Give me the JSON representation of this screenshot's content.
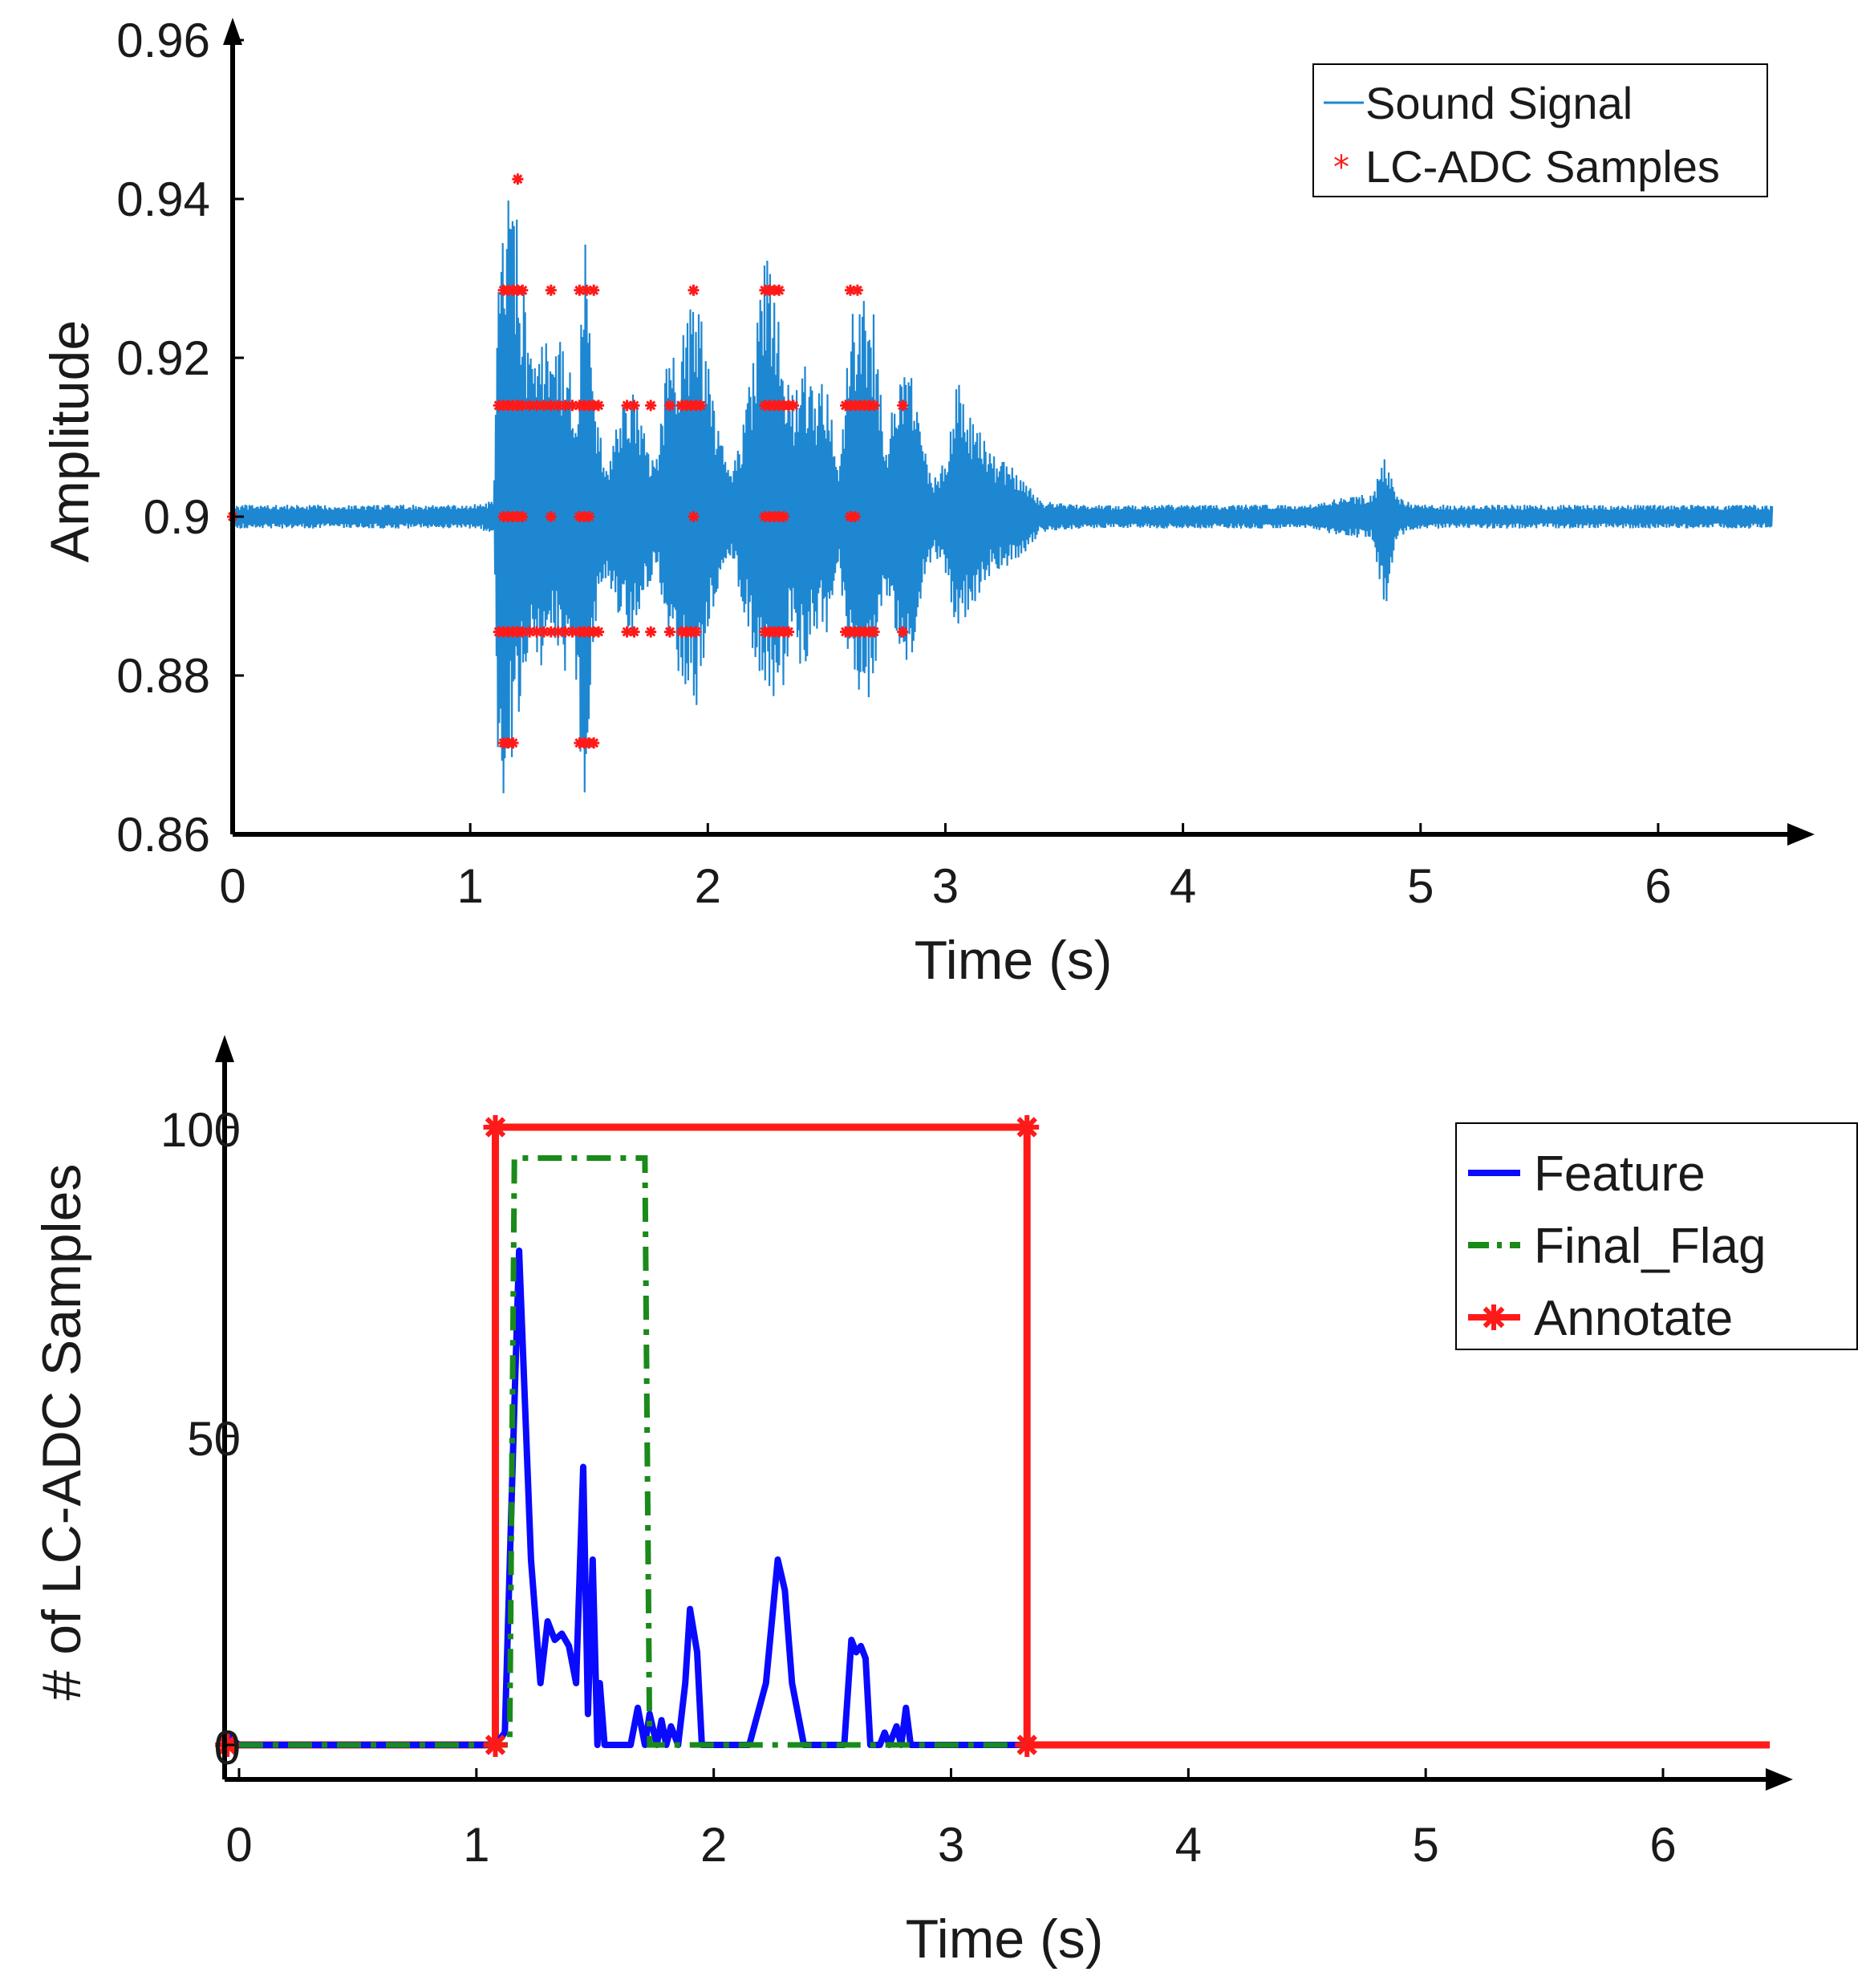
{
  "colors": {
    "signal": "#1e87d2",
    "samples": "#ff1a1a",
    "feature": "#0a0aff",
    "final_flag": "#1a8a1a",
    "annotate": "#ff1a1a",
    "axis": "#000000"
  },
  "chart_data": [
    {
      "type": "line",
      "id": "top",
      "xlabel": "Time (s)",
      "ylabel": "Amplitude",
      "xlim": [
        0,
        6.5
      ],
      "ylim": [
        0.86,
        0.96
      ],
      "xticks": [
        0,
        1,
        2,
        3,
        4,
        5,
        6
      ],
      "xtick_labels": [
        "0",
        "1",
        "2",
        "3",
        "4",
        "5",
        "6"
      ],
      "yticks": [
        0.86,
        0.88,
        0.9,
        0.92,
        0.94,
        0.96
      ],
      "ytick_labels": [
        "0.86",
        "0.88",
        "0.9",
        "0.92",
        "0.94",
        "0.96"
      ],
      "legend": {
        "position": "top-right",
        "entries": [
          {
            "label": "Sound Signal",
            "style": "line"
          },
          {
            "label": "LC-ADC Samples",
            "style": "marker"
          }
        ]
      },
      "series": [
        {
          "name": "Sound Signal",
          "kind": "envelope",
          "baseline": 0.9,
          "t": [
            0,
            1.0,
            1.1,
            1.12,
            1.18,
            1.22,
            1.26,
            1.3,
            1.35,
            1.4,
            1.45,
            1.48,
            1.52,
            1.58,
            1.62,
            1.68,
            1.72,
            1.78,
            1.82,
            1.85,
            1.9,
            1.95,
            2.0,
            2.05,
            2.1,
            2.15,
            2.2,
            2.25,
            2.3,
            2.35,
            2.4,
            2.45,
            2.5,
            2.55,
            2.6,
            2.65,
            2.7,
            2.75,
            2.8,
            2.85,
            2.9,
            2.95,
            3.0,
            3.05,
            3.1,
            3.2,
            3.3,
            3.4,
            3.6,
            4.0,
            4.5,
            4.8,
            4.85,
            4.9,
            4.95,
            5.0,
            5.2,
            5.5,
            6.0,
            6.5
          ],
          "upper": [
            0.9015,
            0.9015,
            0.902,
            0.935,
            0.943,
            0.93,
            0.92,
            0.922,
            0.925,
            0.921,
            0.915,
            0.938,
            0.914,
            0.907,
            0.912,
            0.917,
            0.913,
            0.906,
            0.918,
            0.921,
            0.925,
            0.93,
            0.92,
            0.91,
            0.906,
            0.912,
            0.922,
            0.936,
            0.928,
            0.915,
            0.92,
            0.915,
            0.918,
            0.905,
            0.925,
            0.93,
            0.926,
            0.91,
            0.918,
            0.92,
            0.91,
            0.905,
            0.908,
            0.918,
            0.913,
            0.908,
            0.906,
            0.902,
            0.9015,
            0.9015,
            0.9015,
            0.903,
            0.908,
            0.903,
            0.902,
            0.9015,
            0.9015,
            0.9015,
            0.9015,
            0.9015
          ],
          "lower": [
            0.8985,
            0.8985,
            0.898,
            0.862,
            0.87,
            0.878,
            0.885,
            0.88,
            0.885,
            0.88,
            0.876,
            0.862,
            0.885,
            0.892,
            0.888,
            0.884,
            0.888,
            0.894,
            0.888,
            0.88,
            0.878,
            0.875,
            0.885,
            0.892,
            0.895,
            0.888,
            0.882,
            0.876,
            0.872,
            0.886,
            0.88,
            0.886,
            0.885,
            0.894,
            0.88,
            0.875,
            0.878,
            0.89,
            0.883,
            0.88,
            0.89,
            0.895,
            0.892,
            0.885,
            0.888,
            0.893,
            0.894,
            0.898,
            0.8985,
            0.8985,
            0.8985,
            0.897,
            0.887,
            0.897,
            0.898,
            0.8985,
            0.8985,
            0.8985,
            0.8985,
            0.8985
          ]
        },
        {
          "name": "LC-ADC Samples",
          "kind": "markers",
          "levels": [
            {
              "y": 0.9425,
              "t": [
                1.2
              ]
            },
            {
              "y": 0.9285,
              "t": [
                1.14,
                1.16,
                1.18,
                1.2,
                1.22,
                1.34,
                1.46,
                1.49,
                1.52,
                1.94,
                2.24,
                2.26,
                2.28,
                2.3,
                2.6,
                2.63
              ]
            },
            {
              "y": 0.914,
              "t": [
                1.12,
                1.14,
                1.16,
                1.18,
                1.2,
                1.22,
                1.25,
                1.28,
                1.31,
                1.34,
                1.37,
                1.4,
                1.43,
                1.46,
                1.48,
                1.5,
                1.52,
                1.54,
                1.66,
                1.69,
                1.76,
                1.84,
                1.89,
                1.91,
                1.93,
                1.95,
                1.97,
                2.24,
                2.26,
                2.28,
                2.3,
                2.32,
                2.34,
                2.36,
                2.58,
                2.6,
                2.62,
                2.64,
                2.66,
                2.68,
                2.7,
                2.82
              ]
            },
            {
              "y": 0.9,
              "t": [
                0.0,
                1.14,
                1.16,
                1.18,
                1.2,
                1.22,
                1.34,
                1.46,
                1.48,
                1.5,
                1.94,
                2.24,
                2.26,
                2.28,
                2.3,
                2.32,
                2.6,
                2.62
              ]
            },
            {
              "y": 0.8855,
              "t": [
                1.12,
                1.14,
                1.16,
                1.18,
                1.2,
                1.22,
                1.25,
                1.28,
                1.31,
                1.34,
                1.37,
                1.4,
                1.43,
                1.46,
                1.48,
                1.5,
                1.52,
                1.54,
                1.66,
                1.69,
                1.76,
                1.84,
                1.89,
                1.91,
                1.93,
                1.95,
                2.24,
                2.26,
                2.28,
                2.3,
                2.32,
                2.34,
                2.58,
                2.6,
                2.62,
                2.64,
                2.66,
                2.68,
                2.7,
                2.82
              ]
            },
            {
              "y": 0.8715,
              "t": [
                1.14,
                1.16,
                1.18,
                1.46,
                1.48,
                1.5,
                1.52
              ]
            }
          ]
        }
      ]
    },
    {
      "type": "line",
      "id": "bottom",
      "xlabel": "Time (s)",
      "ylabel": "# of LC-ADC Samples",
      "xlim": [
        0,
        6.5
      ],
      "ylim": [
        -3,
        110
      ],
      "xticks": [
        0,
        1,
        2,
        3,
        4,
        5,
        6
      ],
      "xtick_labels": [
        "0",
        "1",
        "2",
        "3",
        "4",
        "5",
        "6"
      ],
      "yticks": [
        0,
        50,
        100
      ],
      "ytick_labels": [
        "0",
        "50",
        "100"
      ],
      "legend": {
        "position": "top-right",
        "entries": [
          {
            "label": "Feature",
            "style": "solid"
          },
          {
            "label": "Final_Flag",
            "style": "dashdot"
          },
          {
            "label": "Annotate",
            "style": "solid-star"
          }
        ]
      },
      "series": [
        {
          "name": "Feature",
          "x": [
            -0.05,
            0.0,
            1.05,
            1.08,
            1.12,
            1.16,
            1.18,
            1.2,
            1.23,
            1.27,
            1.3,
            1.33,
            1.36,
            1.39,
            1.42,
            1.45,
            1.47,
            1.49,
            1.51,
            1.52,
            1.54,
            1.56,
            1.65,
            1.68,
            1.71,
            1.73,
            1.76,
            1.78,
            1.8,
            1.82,
            1.85,
            1.88,
            1.9,
            1.93,
            1.95,
            1.98,
            2.02,
            2.15,
            2.22,
            2.27,
            2.3,
            2.33,
            2.38,
            2.48,
            2.55,
            2.58,
            2.6,
            2.62,
            2.64,
            2.66,
            2.7,
            2.72,
            2.74,
            2.77,
            2.79,
            2.81,
            2.83,
            2.86,
            3.0,
            3.3
          ],
          "y": [
            1.5,
            0,
            0,
            0,
            2,
            55,
            80,
            60,
            30,
            10,
            20,
            17,
            18,
            16,
            10,
            45,
            5,
            30,
            0,
            10,
            0,
            0,
            0,
            6,
            0,
            5,
            0,
            4,
            0,
            3,
            0,
            10,
            22,
            15,
            0,
            0,
            0,
            0,
            10,
            30,
            25,
            10,
            0,
            0,
            0,
            17,
            15,
            16,
            14,
            0,
            0,
            2,
            0,
            3,
            0,
            6,
            0,
            0,
            0,
            0
          ]
        },
        {
          "name": "Final_Flag",
          "x": [
            0.0,
            1.14,
            1.16,
            1.18,
            1.68,
            1.71,
            1.73,
            3.3
          ],
          "y": [
            0,
            0,
            95,
            95,
            95,
            95,
            0,
            0
          ]
        },
        {
          "name": "Annotate",
          "x": [
            -0.05,
            1.08,
            1.08,
            3.32,
            3.32,
            6.45
          ],
          "y": [
            0,
            0,
            100,
            100,
            0,
            0
          ],
          "star_x": [
            -0.05,
            1.08,
            1.08,
            3.32,
            3.32
          ],
          "star_y": [
            0,
            0,
            100,
            100,
            0
          ]
        }
      ]
    }
  ]
}
